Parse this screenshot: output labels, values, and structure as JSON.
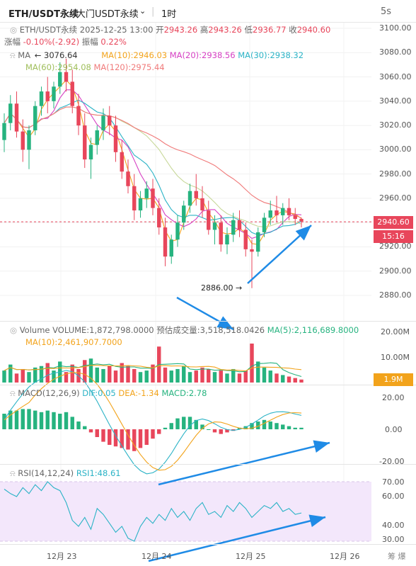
{
  "topbar": {
    "symbol": "ETH/USDT永续",
    "exchange": "大门USDT永续",
    "timeframe": "1时",
    "dropdown_icon": "chevron-down-icon",
    "refresh": "5s"
  },
  "ohlc": {
    "symbol": "ETH/USDT永续",
    "datetime": "2025-12-25 13:00",
    "open_label": "开",
    "open": "2943.26",
    "high_label": "高",
    "high": "2943.26",
    "low_label": "低",
    "low": "2936.77",
    "close_label": "收",
    "close": "2940.60",
    "change_label": "涨幅",
    "change": "-0.10%(-2.92)",
    "amplitude_label": "振幅",
    "amplitude": "0.22%"
  },
  "ma": {
    "label": "MA",
    "ma5": "3076.64",
    "ma10": "MA(10):2946.03",
    "ma20": "MA(20):2938.56",
    "ma30": "MA(30):2938.32",
    "ma60": "MA(60):2954.08",
    "ma120": "MA(120):2975.44"
  },
  "price_axis": [
    "3100.00",
    "3080.00",
    "3060.00",
    "3040.00",
    "3020.00",
    "3000.00",
    "2980.00",
    "2960.00",
    "2940.00",
    "2920.00",
    "2900.00",
    "2880.00"
  ],
  "last_price": "2940.60",
  "countdown": "15:16",
  "low_marker": "2886.00",
  "volume": {
    "label": "Volume",
    "value": "VOLUME:1,872,798.0000",
    "estimate": "预估成交量:3,518,518.0426",
    "ma5": "MA(5):2,116,689.8000",
    "ma10": "MA(10):2,461,907.7000",
    "axis": [
      "20.00M",
      "10.00M"
    ],
    "last_tag": "1.9M"
  },
  "macd": {
    "label": "MACD(12,26,9)",
    "dif": "DIF:0.05",
    "dea": "DEA:-1.34",
    "macd": "MACD:2.78",
    "axis": [
      "20.00",
      "0.00",
      "-20.00"
    ]
  },
  "rsi": {
    "label": "RSI(14,12,24)",
    "rsi1": "RSI1:48.61",
    "axis": [
      "70.00",
      "60.00",
      "40.00",
      "30.00"
    ]
  },
  "time_axis": [
    "12月 23",
    "12月 24",
    "12月 25",
    "12月 26"
  ],
  "bottom_right": "筹 爆",
  "colors": {
    "up": "#26b37f",
    "down": "#e8465b",
    "ma10": "#f2a31b",
    "ma20": "#d63fc3",
    "ma30": "#2bb3c6",
    "ma60": "#c8d89a",
    "ma120": "#f07a7a",
    "arrow": "#1f8be6",
    "rsi_band": "#f3e7fb"
  },
  "chart_data": {
    "type": "candlestick",
    "price_range": [
      2876,
      3104
    ],
    "candles": [
      [
        3008,
        3030,
        2998,
        3022
      ],
      [
        3022,
        3045,
        3016,
        3038
      ],
      [
        3038,
        3048,
        3010,
        3015
      ],
      [
        3015,
        3025,
        2990,
        3000
      ],
      [
        3000,
        3020,
        2984,
        3016
      ],
      [
        3016,
        3040,
        3012,
        3036
      ],
      [
        3036,
        3052,
        3028,
        3048
      ],
      [
        3048,
        3060,
        3030,
        3040
      ],
      [
        3040,
        3056,
        3034,
        3052
      ],
      [
        3052,
        3072,
        3046,
        3064
      ],
      [
        3064,
        3075,
        3048,
        3056
      ],
      [
        3056,
        3066,
        3030,
        3036
      ],
      [
        3036,
        3046,
        3012,
        3020
      ],
      [
        3020,
        3030,
        2985,
        2992
      ],
      [
        2992,
        3010,
        2976,
        3004
      ],
      [
        3004,
        3020,
        2996,
        3016
      ],
      [
        3016,
        3034,
        3008,
        3028
      ],
      [
        3028,
        3036,
        3012,
        3020
      ],
      [
        3020,
        3028,
        2990,
        2998
      ],
      [
        2998,
        3008,
        2976,
        2982
      ],
      [
        2982,
        2992,
        2964,
        2970
      ],
      [
        2970,
        2980,
        2942,
        2950
      ],
      [
        2950,
        2966,
        2944,
        2960
      ],
      [
        2960,
        2974,
        2952,
        2968
      ],
      [
        2968,
        2976,
        2946,
        2952
      ],
      [
        2952,
        2960,
        2930,
        2936
      ],
      [
        2936,
        2944,
        2904,
        2912
      ],
      [
        2912,
        2930,
        2906,
        2926
      ],
      [
        2926,
        2946,
        2920,
        2940
      ],
      [
        2940,
        2958,
        2934,
        2954
      ],
      [
        2954,
        2972,
        2948,
        2966
      ],
      [
        2966,
        2980,
        2954,
        2960
      ],
      [
        2960,
        2970,
        2944,
        2950
      ],
      [
        2950,
        2958,
        2930,
        2934
      ],
      [
        2934,
        2946,
        2922,
        2940
      ],
      [
        2940,
        2946,
        2916,
        2922
      ],
      [
        2922,
        2936,
        2914,
        2930
      ],
      [
        2930,
        2948,
        2924,
        2942
      ],
      [
        2942,
        2950,
        2928,
        2934
      ],
      [
        2934,
        2940,
        2912,
        2918
      ],
      [
        2918,
        2926,
        2886,
        2916
      ],
      [
        2916,
        2936,
        2912,
        2932
      ],
      [
        2932,
        2948,
        2928,
        2944
      ],
      [
        2944,
        2958,
        2938,
        2950
      ],
      [
        2950,
        2962,
        2940,
        2946
      ],
      [
        2946,
        2956,
        2938,
        2952
      ],
      [
        2952,
        2960,
        2942,
        2946
      ],
      [
        2946,
        2952,
        2938,
        2943
      ],
      [
        2943,
        2944,
        2936,
        2941
      ]
    ],
    "volumes_m": [
      8,
      12,
      6,
      9,
      7,
      10,
      11,
      13,
      8,
      14,
      7,
      12,
      9,
      15,
      16,
      10,
      9,
      11,
      8,
      13,
      11,
      9,
      7,
      8,
      12,
      24,
      10,
      8,
      9,
      11,
      7,
      8,
      10,
      9,
      7,
      8,
      6,
      9,
      6,
      8,
      26,
      14,
      10,
      8,
      6,
      5,
      4,
      3,
      2
    ],
    "macd_hist": [
      10,
      12,
      12,
      13,
      13,
      12,
      11,
      12,
      11,
      10,
      11,
      8,
      5,
      2,
      -2,
      -5,
      -8,
      -10,
      -11,
      -12,
      -13,
      -14,
      -12,
      -10,
      -6,
      -3,
      1,
      4,
      7,
      8,
      8,
      6,
      3,
      0,
      -2,
      -3,
      -2,
      -1,
      1,
      2,
      4,
      5,
      6,
      5,
      4,
      3,
      2,
      1,
      1
    ],
    "rsi": [
      65,
      62,
      60,
      66,
      62,
      68,
      64,
      70,
      66,
      64,
      56,
      44,
      40,
      46,
      38,
      52,
      48,
      42,
      36,
      40,
      32,
      30,
      40,
      46,
      42,
      48,
      44,
      52,
      46,
      50,
      44,
      52,
      56,
      48,
      50,
      46,
      54,
      50,
      56,
      52,
      46,
      50,
      54,
      52,
      56,
      50,
      52,
      48,
      49
    ]
  }
}
